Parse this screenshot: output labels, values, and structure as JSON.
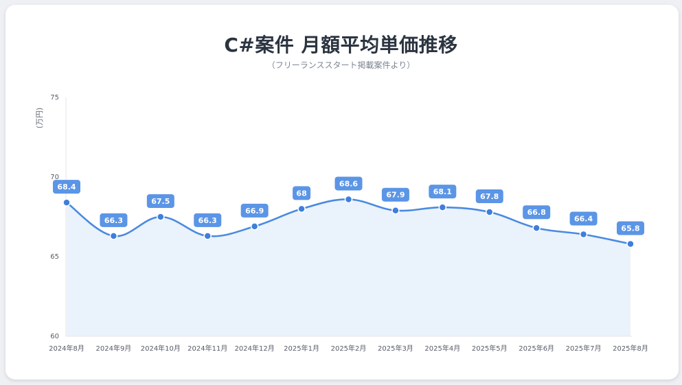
{
  "chart_data": {
    "type": "line",
    "title": "C#案件 月額平均単価推移",
    "subtitle": "（フリーランススタート掲載案件より）",
    "ylabel": "(万円)",
    "xlabel": "",
    "categories": [
      "2024年8月",
      "2024年9月",
      "2024年10月",
      "2024年11月",
      "2024年12月",
      "2025年1月",
      "2025年2月",
      "2025年3月",
      "2025年4月",
      "2025年5月",
      "2025年6月",
      "2025年7月",
      "2025年8月"
    ],
    "series": [
      {
        "values": [
          68.4,
          66.3,
          67.5,
          66.3,
          66.9,
          68,
          68.6,
          67.9,
          68.1,
          67.8,
          66.8,
          66.4,
          65.8
        ]
      }
    ],
    "data_labels": [
      "68.4",
      "66.3",
      "67.5",
      "66.3",
      "66.9",
      "68",
      "68.6",
      "67.9",
      "68.1",
      "67.8",
      "66.8",
      "66.4",
      "65.8"
    ],
    "ylim": [
      60,
      75
    ],
    "yticks": [
      "60",
      "65",
      "70",
      "75"
    ],
    "grid": false,
    "area_fill": true,
    "legend": "none",
    "colors": {
      "line": "#4a8ae0",
      "point": "#3f7fdc",
      "area": "#eaf2fc",
      "label_bg": "#5b95e6",
      "label_text": "#ffffff"
    }
  }
}
